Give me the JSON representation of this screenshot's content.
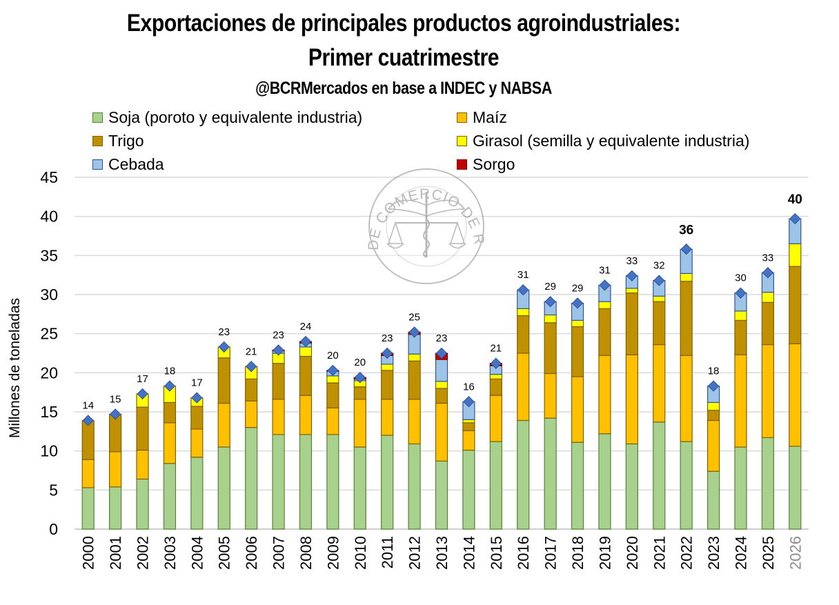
{
  "header": {
    "title_line1": "Exportaciones de principales productos agroindustriales:",
    "title_line2": "Primer cuatrimestre",
    "subtitle": "@BCRMercados en base a INDEC y NABSA"
  },
  "watermark": {
    "text": "BOLSA DE COMERCIO DE ROSARIO",
    "icon": "caduceus-scales-seal-icon"
  },
  "chart_data": {
    "type": "bar",
    "stacked": true,
    "title": "Exportaciones de principales productos agroindustriales: Primer cuatrimestre",
    "subtitle": "@BCRMercados en base a INDEC y NABSA",
    "xlabel": "",
    "ylabel": "Millones de toneladas",
    "ylim": [
      0,
      45
    ],
    "yticks": [
      0,
      5,
      10,
      15,
      20,
      25,
      30,
      35,
      40,
      45
    ],
    "grid": true,
    "legend_position": "top",
    "categories": [
      "2000",
      "2001",
      "2002",
      "2003",
      "2004",
      "2005",
      "2006",
      "2007",
      "2008",
      "2009",
      "2010",
      "2011",
      "2012",
      "2013",
      "2014",
      "2015",
      "2016",
      "2017",
      "2018",
      "2019",
      "2020",
      "2021",
      "2022",
      "2023",
      "2024",
      "2025",
      "2026"
    ],
    "series": [
      {
        "name": "Soja (poroto y equivalente industria)",
        "color": "#a9d18e",
        "border": "#548235",
        "values": [
          5.3,
          5.4,
          6.4,
          8.4,
          9.2,
          10.5,
          13.0,
          12.1,
          12.1,
          12.1,
          10.5,
          12.0,
          10.9,
          8.7,
          10.1,
          11.2,
          13.9,
          14.2,
          11.1,
          12.2,
          10.9,
          13.7,
          11.2,
          7.4,
          10.5,
          11.7,
          10.6
        ]
      },
      {
        "name": "Maíz",
        "color": "#ffc000",
        "border": "#7f6000",
        "values": [
          3.6,
          4.5,
          3.7,
          5.2,
          3.6,
          5.6,
          3.4,
          4.5,
          5.0,
          3.4,
          6.1,
          4.6,
          5.7,
          7.4,
          2.5,
          5.9,
          8.6,
          5.7,
          8.4,
          10.0,
          11.4,
          9.9,
          11.0,
          6.5,
          11.8,
          11.9,
          13.1
        ]
      },
      {
        "name": "Trigo",
        "color": "#bf9000",
        "border": "#7f6000",
        "values": [
          5.0,
          4.8,
          5.5,
          2.6,
          2.9,
          5.8,
          2.8,
          4.6,
          5.0,
          3.2,
          1.6,
          3.7,
          4.9,
          1.9,
          1.0,
          2.1,
          4.8,
          6.5,
          6.4,
          6.0,
          7.9,
          5.5,
          9.5,
          1.3,
          4.4,
          5.4,
          9.9
        ]
      },
      {
        "name": "Girasol (semilla y equivalente industria)",
        "color": "#ffff00",
        "border": "#7f6000",
        "values": [
          0.0,
          0.0,
          1.7,
          2.1,
          1.1,
          1.4,
          1.6,
          1.3,
          1.2,
          0.9,
          0.8,
          0.8,
          0.9,
          0.9,
          0.4,
          0.6,
          0.9,
          1.0,
          0.8,
          0.9,
          0.6,
          0.7,
          1.0,
          1.0,
          1.2,
          1.3,
          2.9
        ]
      },
      {
        "name": "Cebada",
        "color": "#9dc3e6",
        "border": "#2f5597",
        "values": [
          0.0,
          0.0,
          0.0,
          0.0,
          0.0,
          0.0,
          0.0,
          0.3,
          0.5,
          0.6,
          0.2,
          1.1,
          2.5,
          2.8,
          2.3,
          1.1,
          2.4,
          1.7,
          2.2,
          2.1,
          1.6,
          2.0,
          3.1,
          2.1,
          2.3,
          2.5,
          3.2
        ]
      },
      {
        "name": "Sorgo",
        "color": "#c00000",
        "border": "#7f0000",
        "values": [
          0.0,
          0.0,
          0.0,
          0.0,
          0.0,
          0.0,
          0.0,
          0.1,
          0.2,
          0.1,
          0.2,
          0.3,
          0.3,
          0.8,
          0.0,
          0.3,
          0.0,
          0.0,
          0.0,
          0.0,
          0.0,
          0.0,
          0.0,
          0.0,
          0.0,
          0.0,
          0.0
        ]
      }
    ],
    "totals": [
      14,
      15,
      17,
      18,
      17,
      23,
      21,
      23,
      24,
      20,
      20,
      23,
      25,
      23,
      16,
      21,
      31,
      29,
      29,
      31,
      33,
      32,
      36,
      18,
      30,
      33,
      40
    ],
    "total_marker": {
      "shape": "diamond",
      "color": "#4472c4"
    },
    "bold_total_labels": [
      "2022",
      "2026"
    ],
    "dimmed_tick_labels": [
      "2026"
    ]
  }
}
